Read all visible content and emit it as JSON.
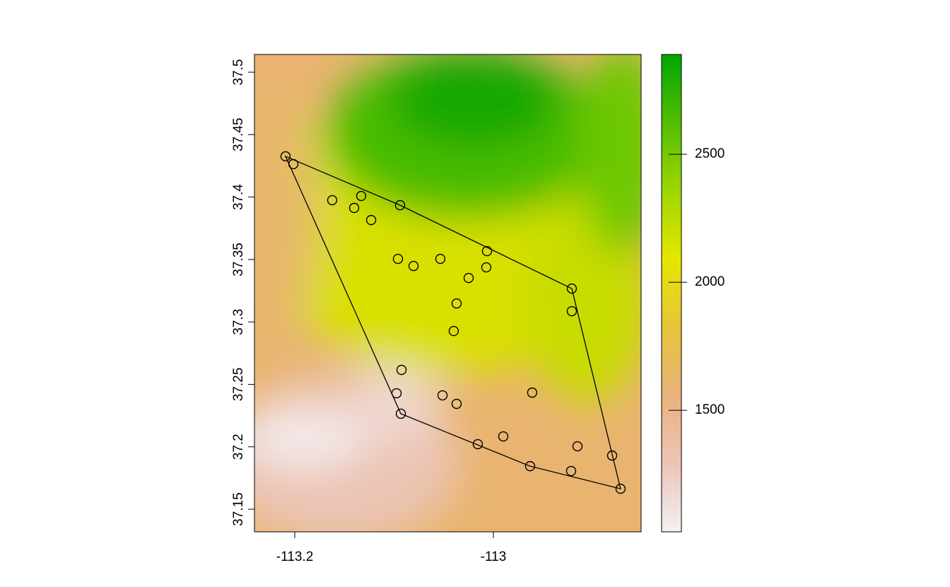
{
  "chart_data": {
    "type": "scatter",
    "x": [
      -113.2093,
      -113.2014,
      -113.1623,
      -113.1331,
      -113.1402,
      -113.1231,
      -113.094,
      -113.0961,
      -113.0804,
      -113.0534,
      -113.0064,
      -113.0071,
      -113.0249,
      -112.921,
      -113.037,
      -112.921,
      -113.0399,
      -113.0925,
      -113.0975,
      -113.0932,
      -113.0512,
      -113.037,
      -112.9609,
      -112.99,
      -113.0157,
      -112.9153,
      -112.8804,
      -112.963,
      -112.9217,
      -112.8719
    ],
    "values": [
      37.4326,
      37.4264,
      37.3975,
      37.4009,
      37.3913,
      37.3816,
      37.3935,
      37.3505,
      37.3448,
      37.3505,
      37.3567,
      37.3437,
      37.3352,
      37.3267,
      37.3148,
      37.3086,
      37.2927,
      37.2616,
      37.2429,
      37.2265,
      37.2412,
      37.2344,
      37.2434,
      37.2083,
      37.2021,
      37.2004,
      37.193,
      37.1845,
      37.1806,
      37.1664
    ],
    "xlim": [
      -113.2406,
      -112.8512
    ],
    "ylim": [
      37.1319,
      37.5142
    ],
    "xticks": [
      -113.2,
      -113
    ],
    "yticks": [
      37.15,
      37.2,
      37.25,
      37.3,
      37.35,
      37.4,
      37.45,
      37.5
    ],
    "hull": true,
    "colorbar": {
      "zlim": [
        1025,
        2890
      ],
      "zticks": [
        1500,
        2000,
        2500
      ],
      "colors": [
        "#F2F2F2",
        "#EDC3B8",
        "#E9B27A",
        "#E6C43A",
        "#E6E600",
        "#9ED600",
        "#52BD00",
        "#00A600"
      ]
    }
  }
}
